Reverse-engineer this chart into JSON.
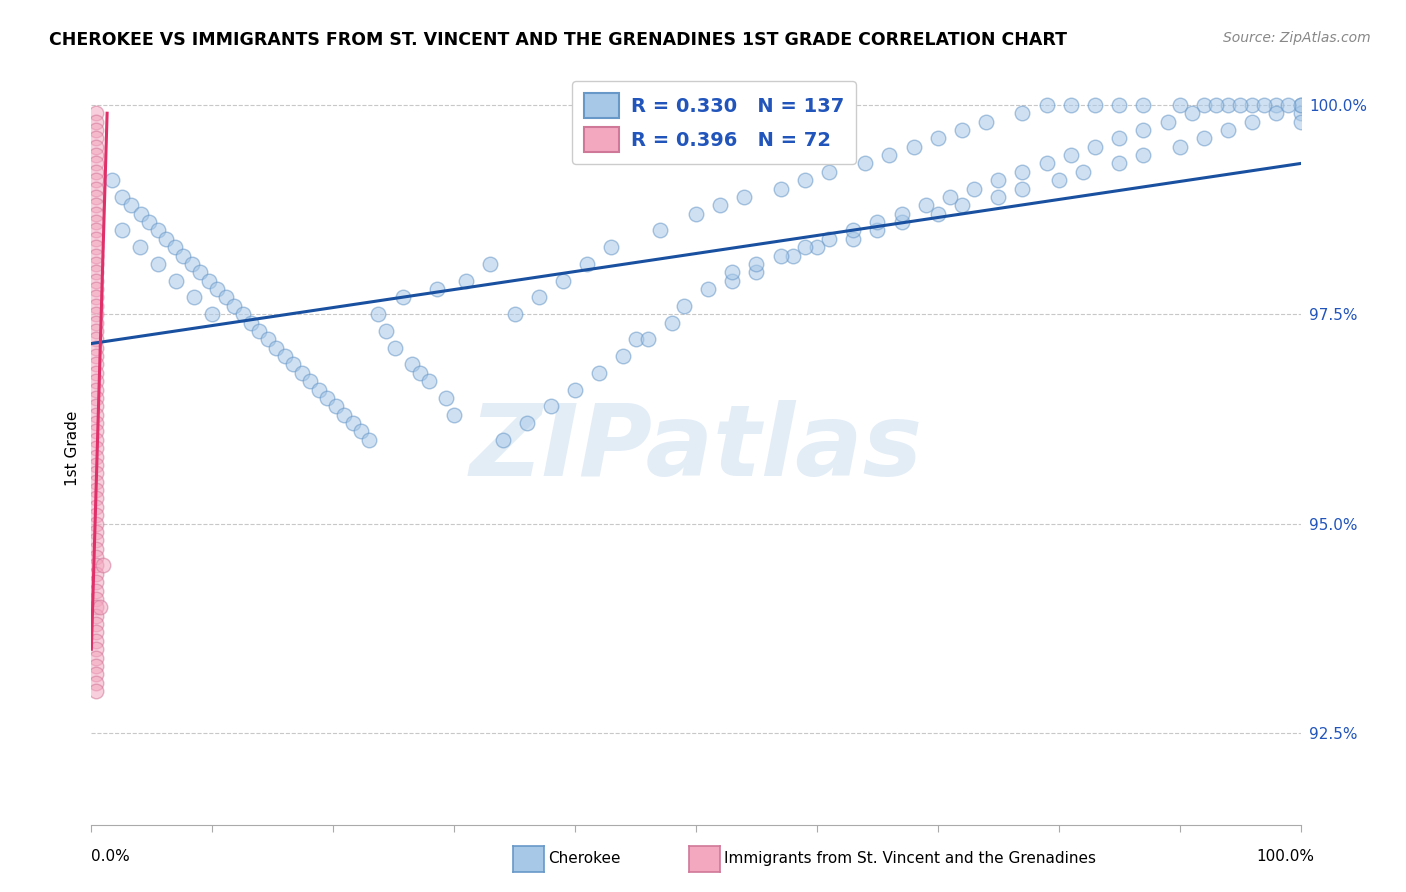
{
  "title": "CHEROKEE VS IMMIGRANTS FROM ST. VINCENT AND THE GRENADINES 1ST GRADE CORRELATION CHART",
  "source": "Source: ZipAtlas.com",
  "ylabel": "1st Grade",
  "xlim": [
    0.0,
    1.0
  ],
  "ylim": [
    0.914,
    1.004
  ],
  "yticks": [
    0.925,
    0.95,
    0.975,
    1.0
  ],
  "ytick_labels": [
    "92.5%",
    "95.0%",
    "97.5%",
    "100.0%"
  ],
  "blue_R": 0.33,
  "blue_N": 137,
  "pink_R": 0.396,
  "pink_N": 72,
  "blue_label": "Cherokee",
  "pink_label": "Immigrants from St. Vincent and the Grenadines",
  "blue_scatter_fc": "#a8c8e8",
  "blue_scatter_ec": "#6898c8",
  "pink_scatter_fc": "#f4a8c0",
  "pink_scatter_ec": "#d07898",
  "blue_trend_color": "#1a50a0",
  "pink_trend_color": "#e0306a",
  "scatter_size": 110,
  "scatter_alpha": 0.55,
  "scatter_lw": 1.0,
  "trend_lw": 2.2,
  "blue_trend_x": [
    0.0,
    1.0
  ],
  "blue_trend_y": [
    0.9715,
    0.993
  ],
  "pink_trend_x": [
    0.0,
    0.013
  ],
  "pink_trend_y": [
    0.935,
    0.999
  ],
  "grid_color": "#c8c8c8",
  "watermark_text": "ZIPatlas",
  "watermark_color": "#b0cce8",
  "watermark_alpha": 0.35,
  "watermark_fontsize": 72,
  "bg_color": "#ffffff",
  "title_fontsize": 12.5,
  "legend_fontsize": 14,
  "ylabel_fontsize": 11,
  "ytick_color": "#2255bb",
  "ytick_fontsize": 11,
  "source_fontsize": 10,
  "blue_scatter_x": [
    0.017,
    0.025,
    0.033,
    0.041,
    0.048,
    0.055,
    0.062,
    0.069,
    0.076,
    0.083,
    0.09,
    0.097,
    0.104,
    0.111,
    0.118,
    0.125,
    0.132,
    0.139,
    0.146,
    0.153,
    0.16,
    0.167,
    0.174,
    0.181,
    0.188,
    0.195,
    0.202,
    0.209,
    0.216,
    0.223,
    0.23,
    0.237,
    0.244,
    0.251,
    0.258,
    0.265,
    0.272,
    0.279,
    0.286,
    0.293,
    0.3,
    0.31,
    0.33,
    0.35,
    0.37,
    0.39,
    0.41,
    0.43,
    0.45,
    0.47,
    0.5,
    0.52,
    0.54,
    0.57,
    0.59,
    0.61,
    0.64,
    0.66,
    0.68,
    0.7,
    0.72,
    0.74,
    0.77,
    0.79,
    0.81,
    0.83,
    0.85,
    0.87,
    0.9,
    0.92,
    0.94,
    0.96,
    0.98,
    1.0,
    1.0,
    1.0,
    0.48,
    0.53,
    0.55,
    0.58,
    0.6,
    0.63,
    0.65,
    0.67,
    0.7,
    0.72,
    0.75,
    0.77,
    0.8,
    0.82,
    0.85,
    0.87,
    0.9,
    0.92,
    0.94,
    0.96,
    0.98,
    1.0,
    0.34,
    0.36,
    0.38,
    0.4,
    0.42,
    0.44,
    0.46,
    0.49,
    0.51,
    0.53,
    0.55,
    0.57,
    0.59,
    0.61,
    0.63,
    0.65,
    0.67,
    0.69,
    0.71,
    0.73,
    0.75,
    0.77,
    0.79,
    0.81,
    0.83,
    0.85,
    0.87,
    0.89,
    0.91,
    0.93,
    0.95,
    0.97,
    0.99,
    0.025,
    0.04,
    0.055,
    0.07,
    0.085,
    0.1
  ],
  "blue_scatter_y": [
    0.991,
    0.989,
    0.988,
    0.987,
    0.986,
    0.985,
    0.984,
    0.983,
    0.982,
    0.981,
    0.98,
    0.979,
    0.978,
    0.977,
    0.976,
    0.975,
    0.974,
    0.973,
    0.972,
    0.971,
    0.97,
    0.969,
    0.968,
    0.967,
    0.966,
    0.965,
    0.964,
    0.963,
    0.962,
    0.961,
    0.96,
    0.975,
    0.973,
    0.971,
    0.977,
    0.969,
    0.968,
    0.967,
    0.978,
    0.965,
    0.963,
    0.979,
    0.981,
    0.975,
    0.977,
    0.979,
    0.981,
    0.983,
    0.972,
    0.985,
    0.987,
    0.988,
    0.989,
    0.99,
    0.991,
    0.992,
    0.993,
    0.994,
    0.995,
    0.996,
    0.997,
    0.998,
    0.999,
    1.0,
    1.0,
    1.0,
    1.0,
    1.0,
    1.0,
    1.0,
    1.0,
    1.0,
    1.0,
    1.0,
    0.999,
    0.998,
    0.974,
    0.979,
    0.98,
    0.982,
    0.983,
    0.984,
    0.985,
    0.986,
    0.987,
    0.988,
    0.989,
    0.99,
    0.991,
    0.992,
    0.993,
    0.994,
    0.995,
    0.996,
    0.997,
    0.998,
    0.999,
    1.0,
    0.96,
    0.962,
    0.964,
    0.966,
    0.968,
    0.97,
    0.972,
    0.976,
    0.978,
    0.98,
    0.981,
    0.982,
    0.983,
    0.984,
    0.985,
    0.986,
    0.987,
    0.988,
    0.989,
    0.99,
    0.991,
    0.992,
    0.993,
    0.994,
    0.995,
    0.996,
    0.997,
    0.998,
    0.999,
    1.0,
    1.0,
    1.0,
    1.0,
    0.985,
    0.983,
    0.981,
    0.979,
    0.977,
    0.975
  ],
  "pink_scatter_x": [
    0.004,
    0.004,
    0.004,
    0.004,
    0.004,
    0.004,
    0.004,
    0.004,
    0.004,
    0.004,
    0.004,
    0.004,
    0.004,
    0.004,
    0.004,
    0.004,
    0.004,
    0.004,
    0.004,
    0.004,
    0.004,
    0.004,
    0.004,
    0.004,
    0.004,
    0.004,
    0.004,
    0.004,
    0.004,
    0.004,
    0.004,
    0.004,
    0.004,
    0.004,
    0.004,
    0.004,
    0.004,
    0.004,
    0.004,
    0.004,
    0.004,
    0.004,
    0.004,
    0.004,
    0.004,
    0.004,
    0.004,
    0.004,
    0.004,
    0.004,
    0.004,
    0.004,
    0.004,
    0.004,
    0.004,
    0.004,
    0.004,
    0.004,
    0.004,
    0.004,
    0.004,
    0.004,
    0.004,
    0.004,
    0.004,
    0.004,
    0.004,
    0.004,
    0.004,
    0.004,
    0.007,
    0.01
  ],
  "pink_scatter_y": [
    0.999,
    0.998,
    0.997,
    0.996,
    0.995,
    0.994,
    0.993,
    0.992,
    0.991,
    0.99,
    0.989,
    0.988,
    0.987,
    0.986,
    0.985,
    0.984,
    0.983,
    0.982,
    0.981,
    0.98,
    0.979,
    0.978,
    0.977,
    0.976,
    0.975,
    0.974,
    0.973,
    0.972,
    0.971,
    0.97,
    0.969,
    0.968,
    0.967,
    0.966,
    0.965,
    0.964,
    0.963,
    0.962,
    0.961,
    0.96,
    0.959,
    0.958,
    0.957,
    0.956,
    0.955,
    0.954,
    0.953,
    0.952,
    0.951,
    0.95,
    0.949,
    0.948,
    0.947,
    0.946,
    0.945,
    0.944,
    0.943,
    0.942,
    0.941,
    0.94,
    0.939,
    0.938,
    0.937,
    0.936,
    0.935,
    0.934,
    0.933,
    0.932,
    0.931,
    0.93,
    0.94,
    0.945
  ]
}
